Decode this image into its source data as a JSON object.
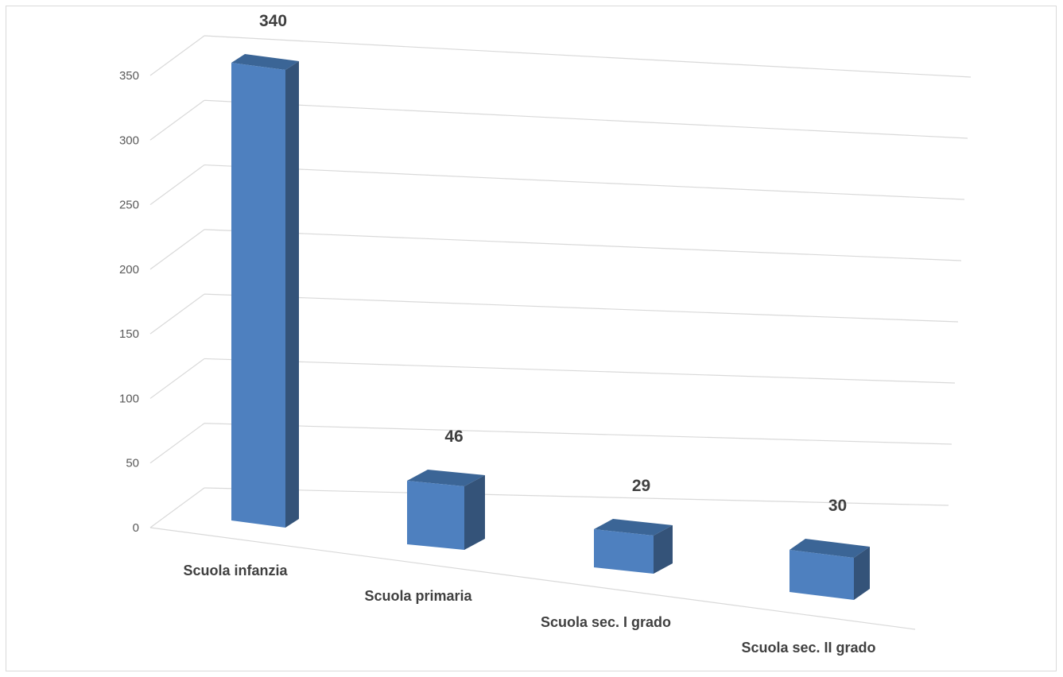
{
  "chart_data": {
    "type": "bar",
    "style": "3d-perspective",
    "categories": [
      "Scuola infanzia",
      "Scuola primaria",
      "Scuola sec. I grado",
      "Scuola sec. II grado"
    ],
    "values": [
      340,
      46,
      29,
      30
    ],
    "data_labels": [
      "340",
      "46",
      "29",
      "30"
    ],
    "y_ticks": [
      "0",
      "50",
      "100",
      "150",
      "200",
      "250",
      "300",
      "350"
    ],
    "ylim": [
      0,
      350
    ],
    "grid": true,
    "legend": "none",
    "colors": {
      "bar_front": "#4e80bf",
      "bar_side": "#345379",
      "bar_top": "#3b6596",
      "grid": "#d9d9d9"
    }
  }
}
